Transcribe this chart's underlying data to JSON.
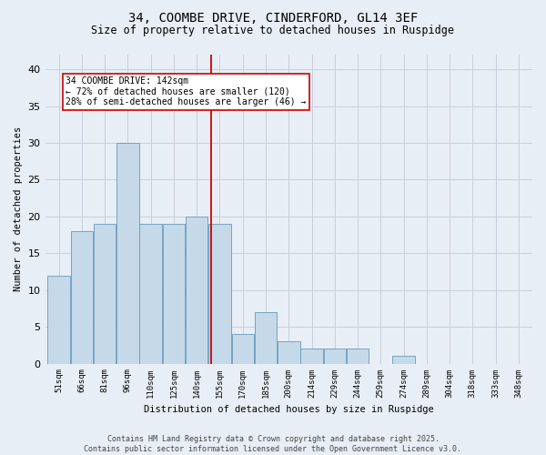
{
  "title": "34, COOMBE DRIVE, CINDERFORD, GL14 3EF",
  "subtitle": "Size of property relative to detached houses in Ruspidge",
  "xlabel": "Distribution of detached houses by size in Ruspidge",
  "ylabel": "Number of detached properties",
  "bar_labels": [
    "51sqm",
    "66sqm",
    "81sqm",
    "96sqm",
    "110sqm",
    "125sqm",
    "140sqm",
    "155sqm",
    "170sqm",
    "185sqm",
    "200sqm",
    "214sqm",
    "229sqm",
    "244sqm",
    "259sqm",
    "274sqm",
    "289sqm",
    "304sqm",
    "318sqm",
    "333sqm",
    "348sqm"
  ],
  "counts": [
    12,
    18,
    19,
    30,
    19,
    19,
    20,
    19,
    4,
    7,
    3,
    2,
    2,
    2,
    0,
    1,
    0,
    0,
    0,
    0,
    0
  ],
  "bar_color": "#c6d9e8",
  "bar_edge_color": "#6699bb",
  "highlight_bar_index": 6,
  "highlight_line_color": "#cc0000",
  "annotation_text": "34 COOMBE DRIVE: 142sqm\n← 72% of detached houses are smaller (120)\n28% of semi-detached houses are larger (46) →",
  "annotation_box_color": "#ffffff",
  "annotation_box_edge": "#cc0000",
  "grid_color": "#ccccdd",
  "bg_color": "#e8eef5",
  "ylim": [
    0,
    42
  ],
  "yticks": [
    0,
    5,
    10,
    15,
    20,
    25,
    30,
    35,
    40
  ],
  "footer_line1": "Contains HM Land Registry data © Crown copyright and database right 2025.",
  "footer_line2": "Contains public sector information licensed under the Open Government Licence v3.0."
}
